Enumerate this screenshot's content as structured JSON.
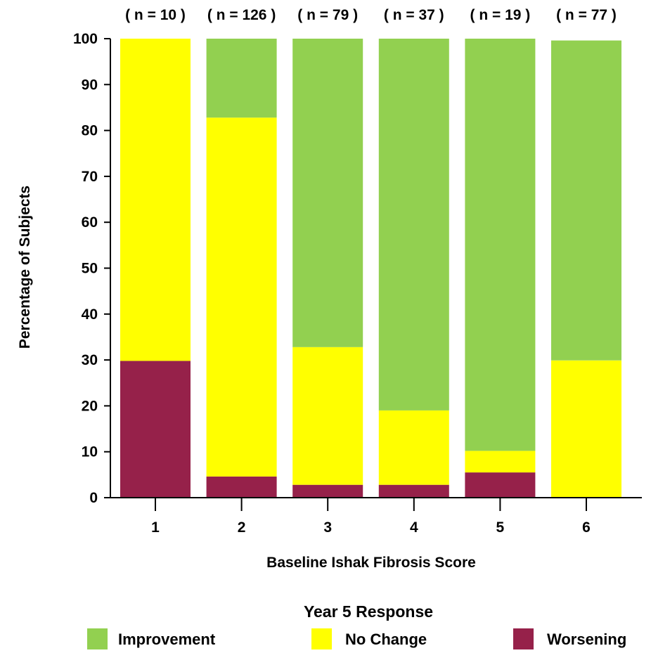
{
  "chart_data": {
    "type": "bar",
    "stacked": true,
    "title": "",
    "xlabel": "Baseline Ishak Fibrosis Score",
    "ylabel": "Percentage of Subjects",
    "ylim": [
      0,
      100
    ],
    "yticks": [
      "0",
      "10",
      "20",
      "30",
      "40",
      "50",
      "60",
      "70",
      "80",
      "90",
      "100"
    ],
    "categories": [
      "1",
      "2",
      "3",
      "4",
      "5",
      "6"
    ],
    "n_labels": [
      "( n = 10 )",
      "( n = 126 )",
      "( n = 79 )",
      "( n = 37 )",
      "( n = 19 )",
      "( n = 77 )"
    ],
    "series": [
      {
        "name": "Worsening",
        "color": "#96214a",
        "values": [
          29.8,
          4.6,
          2.8,
          2.8,
          5.5,
          0
        ]
      },
      {
        "name": "No Change",
        "color": "#ffff00",
        "values": [
          70.2,
          78.2,
          30.0,
          16.2,
          4.7,
          29.9
        ]
      },
      {
        "name": "Improvement",
        "color": "#92d050",
        "values": [
          0,
          17.2,
          67.2,
          81.0,
          89.8,
          69.7
        ]
      }
    ],
    "legend": {
      "title": "Year 5 Response",
      "position": "bottom",
      "order": [
        "Improvement",
        "No Change",
        "Worsening"
      ]
    },
    "grid": false
  }
}
